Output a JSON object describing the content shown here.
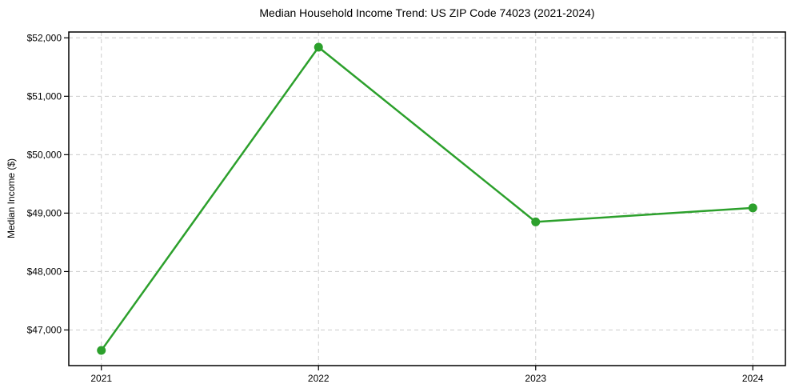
{
  "chart_data": {
    "type": "line",
    "title": "Median Household Income Trend: US ZIP Code 74023 (2021-2024)",
    "xlabel": "",
    "ylabel": "Median Income ($)",
    "categories": [
      "2021",
      "2022",
      "2023",
      "2024"
    ],
    "series": [
      {
        "name": "Median Household Income",
        "values": [
          46650,
          51840,
          48850,
          49090
        ],
        "color": "#2ca02c"
      }
    ],
    "ylim": [
      46390,
      52100
    ],
    "yticks": [
      47000,
      48000,
      49000,
      50000,
      51000,
      52000
    ],
    "ytick_labels": [
      "$47,000",
      "$48,000",
      "$49,000",
      "$50,000",
      "$51,000",
      "$52,000"
    ],
    "grid": true,
    "grid_color": "#cccccc",
    "grid_style": "dashed",
    "legend": "none",
    "background_color": "#ffffff",
    "spine_color": "#000000"
  }
}
